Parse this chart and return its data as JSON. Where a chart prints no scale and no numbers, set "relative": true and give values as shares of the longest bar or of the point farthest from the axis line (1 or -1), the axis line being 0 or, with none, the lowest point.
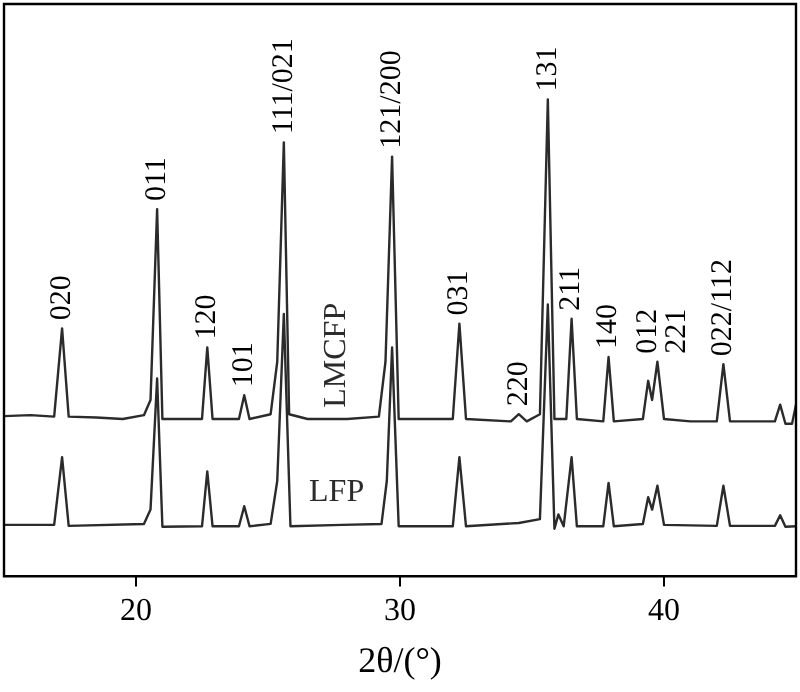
{
  "chart_data": {
    "type": "line",
    "relative": true,
    "xlabel": "2θ/(°)",
    "xlim": [
      15,
      45
    ],
    "xticks": [
      20,
      30,
      40
    ],
    "grid": false,
    "legend": false,
    "marker": "none",
    "line_style": "solid",
    "series": [
      {
        "name": "LMCFP",
        "color": "#2b2b2b",
        "x": [
          15,
          16,
          16.9,
          17.2,
          17.45,
          18.5,
          19.5,
          20.3,
          20.55,
          20.8,
          21.0,
          22.0,
          22.5,
          22.7,
          22.9,
          23.9,
          24.1,
          24.3,
          25.1,
          25.35,
          25.6,
          25.8,
          26.5,
          28,
          29.2,
          29.45,
          29.7,
          29.95,
          31,
          32.0,
          32.25,
          32.5,
          34.2,
          34.5,
          34.8,
          35.3,
          35.6,
          35.85,
          36.3,
          36.5,
          36.7,
          37.7,
          37.9,
          38.1,
          39.2,
          39.4,
          39.55,
          39.75,
          40.0,
          41,
          42.0,
          42.25,
          42.5,
          44.2,
          44.4,
          44.6,
          44.85,
          45
        ],
        "values": [
          0.336,
          0.338,
          0.335,
          0.52,
          0.335,
          0.333,
          0.33,
          0.338,
          0.37,
          0.77,
          0.33,
          0.33,
          0.33,
          0.48,
          0.33,
          0.33,
          0.38,
          0.33,
          0.34,
          0.45,
          0.91,
          0.34,
          0.33,
          0.33,
          0.335,
          0.45,
          0.88,
          0.33,
          0.33,
          0.33,
          0.53,
          0.33,
          0.325,
          0.34,
          0.325,
          0.34,
          1.0,
          0.33,
          0.33,
          0.54,
          0.33,
          0.325,
          0.46,
          0.325,
          0.33,
          0.41,
          0.37,
          0.45,
          0.33,
          0.325,
          0.325,
          0.445,
          0.325,
          0.325,
          0.36,
          0.32,
          0.32,
          0.36
        ]
      },
      {
        "name": "LFP",
        "color": "#2b2b2b",
        "x": [
          15,
          16.9,
          17.2,
          17.45,
          20.3,
          20.55,
          20.8,
          21.0,
          22.5,
          22.7,
          22.9,
          23.9,
          24.1,
          24.3,
          25.1,
          25.35,
          25.6,
          25.85,
          27.8,
          29.3,
          29.5,
          29.7,
          29.95,
          32.0,
          32.25,
          32.5,
          34.5,
          35.3,
          35.6,
          35.85,
          36.0,
          36.2,
          36.5,
          36.7,
          37.7,
          37.9,
          38.1,
          39.2,
          39.4,
          39.55,
          39.75,
          40.0,
          42.0,
          42.25,
          42.5,
          44.2,
          44.4,
          44.6,
          45
        ],
        "values": [
          0.108,
          0.108,
          0.25,
          0.106,
          0.11,
          0.14,
          0.415,
          0.104,
          0.105,
          0.22,
          0.105,
          0.105,
          0.147,
          0.105,
          0.11,
          0.2,
          0.55,
          0.105,
          0.108,
          0.11,
          0.2,
          0.48,
          0.105,
          0.105,
          0.25,
          0.105,
          0.112,
          0.12,
          0.57,
          0.1,
          0.13,
          0.105,
          0.25,
          0.105,
          0.105,
          0.196,
          0.105,
          0.11,
          0.166,
          0.14,
          0.19,
          0.108,
          0.106,
          0.19,
          0.106,
          0.106,
          0.128,
          0.104,
          0.105
        ]
      }
    ],
    "annotations": [
      {
        "text": "020",
        "x": 17.2,
        "y": 0.52
      },
      {
        "text": "011",
        "x": 20.8,
        "y": 0.77
      },
      {
        "text": "120",
        "x": 22.7,
        "y": 0.48
      },
      {
        "text": "101",
        "x": 24.1,
        "y": 0.38
      },
      {
        "text": "111/021",
        "x": 25.6,
        "y": 0.91
      },
      {
        "text": "121/200",
        "x": 29.7,
        "y": 0.88
      },
      {
        "text": "031",
        "x": 32.25,
        "y": 0.53
      },
      {
        "text": "220",
        "x": 34.5,
        "y": 0.34
      },
      {
        "text": "131",
        "x": 35.6,
        "y": 1.0
      },
      {
        "text": "211",
        "x": 36.5,
        "y": 0.54
      },
      {
        "text": "140",
        "x": 37.9,
        "y": 0.46
      },
      {
        "text": "012",
        "x": 39.4,
        "y": 0.41
      },
      {
        "text": "221",
        "x": 39.75,
        "y": 0.45
      },
      {
        "text": "022/112",
        "x": 42.25,
        "y": 0.445
      }
    ]
  }
}
